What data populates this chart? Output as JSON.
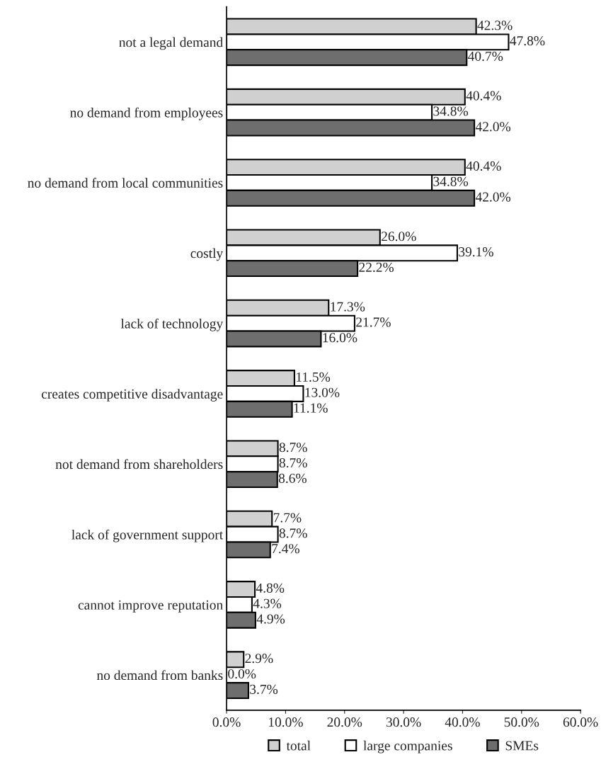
{
  "chart_data": {
    "type": "bar",
    "orientation": "horizontal",
    "categories": [
      "not a legal demand",
      "no demand from employees",
      "no demand from local communities",
      "costly",
      "lack of technology",
      "creates competitive disadvantage",
      "not demand from shareholders",
      "lack of government support",
      "cannot improve reputation",
      "no demand from banks"
    ],
    "series": [
      {
        "name": "total",
        "color": "#d0d0d0",
        "values": [
          42.3,
          40.4,
          40.4,
          26.0,
          17.3,
          11.5,
          8.7,
          7.7,
          4.8,
          2.9
        ],
        "value_labels": [
          "42.3%",
          "40.4%",
          "40.4%",
          "26.0%",
          "17.3%",
          "11.5%",
          "8.7%",
          "7.7%",
          "4.8%",
          "2.9%"
        ]
      },
      {
        "name": "large companies",
        "color": "#ffffff",
        "values": [
          47.8,
          34.8,
          34.8,
          39.1,
          21.7,
          13.0,
          8.7,
          8.7,
          4.3,
          0.0
        ],
        "value_labels": [
          "47.8%",
          "34.8%",
          "34.8%",
          "39.1%",
          "21.7%",
          "13.0%",
          "8.7%",
          "8.7%",
          "4.3%",
          "0.0%"
        ]
      },
      {
        "name": "SMEs",
        "color": "#6e6e6e",
        "values": [
          40.7,
          42.0,
          42.0,
          22.2,
          16.0,
          11.1,
          8.6,
          7.4,
          4.9,
          3.7
        ],
        "value_labels": [
          "40.7%",
          "42.0%",
          "42.0%",
          "22.2%",
          "16.0%",
          "11.1%",
          "8.6%",
          "7.4%",
          "4.9%",
          "3.7%"
        ]
      }
    ],
    "xlim": [
      0,
      60
    ],
    "xticks": [
      {
        "value": 0,
        "label": "0.0%"
      },
      {
        "value": 10,
        "label": "10.0%"
      },
      {
        "value": 20,
        "label": "20.0%"
      },
      {
        "value": 30,
        "label": "30.0%"
      },
      {
        "value": 40,
        "label": "40.0%"
      },
      {
        "value": 50,
        "label": "50.0%"
      },
      {
        "value": 60,
        "label": "60.0%"
      }
    ],
    "grid": false,
    "legend": "bottom"
  }
}
